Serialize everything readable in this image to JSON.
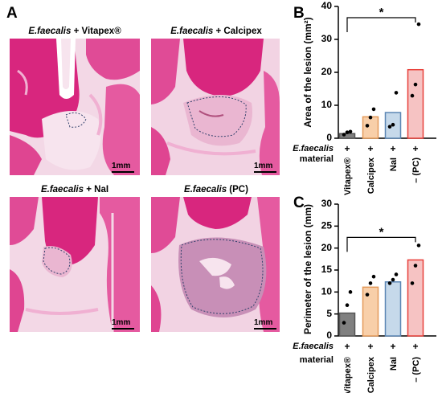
{
  "panel_a": {
    "letter": "A",
    "images": [
      {
        "title_italic": "E.faecalis",
        "title_rest": " + Vitapex®",
        "scale": "1mm",
        "variant": "vitapex"
      },
      {
        "title_italic": "E.faecalis",
        "title_rest": " + Calcipex",
        "scale": "1mm",
        "variant": "calcipex"
      },
      {
        "title_italic": "E.faecalis",
        "title_rest": " + NaI",
        "scale": "1mm",
        "variant": "nai"
      },
      {
        "title_italic": "E.faecalis",
        "title_rest": " (PC)",
        "scale": "1mm",
        "variant": "pc"
      }
    ]
  },
  "colors": {
    "gray": "#808080",
    "orange_fill": "#f8cfa9",
    "orange_edge": "#e49a5a",
    "blue_fill": "#c6d9ea",
    "blue_edge": "#5b86b4",
    "red_fill": "#f6c3c3",
    "red_edge": "#e8403a",
    "tissue_magenta": "#d8267e",
    "tissue_pink": "#f0b0d2",
    "tissue_pale": "#f7e4ee"
  },
  "chart_data": [
    {
      "type": "bar",
      "letter": "B",
      "ylabel": "Area of the lesion (mm²)",
      "ylim": [
        0,
        40
      ],
      "yticks": [
        "0",
        "10",
        "20",
        "30",
        "40"
      ],
      "row1_label": "E.faecalis",
      "row2_label": "material",
      "row1_marks": [
        "+",
        "+",
        "+",
        "+"
      ],
      "categories": [
        "Vitapex®",
        "Calcipex",
        "NaI",
        "– (PC)"
      ],
      "values": [
        1.4,
        6.5,
        7.8,
        20.8
      ],
      "points": [
        [
          1.1,
          1.8,
          2.0
        ],
        [
          3.8,
          6.3,
          8.8
        ],
        [
          3.5,
          4.1,
          13.8
        ],
        [
          12.9,
          16.3,
          34.6
        ]
      ],
      "significance": "*",
      "sig_pair": [
        0,
        3
      ]
    },
    {
      "type": "bar",
      "letter": "C",
      "ylabel": "Perimeter of the lesion (mm)",
      "ylim": [
        0,
        30
      ],
      "yticks": [
        "0",
        "5",
        "10",
        "15",
        "20",
        "25",
        "30"
      ],
      "row1_label": "E.faecalis",
      "row2_label": "material",
      "row1_marks": [
        "+",
        "+",
        "+",
        "+"
      ],
      "categories": [
        "Vitapex®",
        "Calcipex",
        "NaI",
        "– (PC)"
      ],
      "values": [
        5.2,
        11.1,
        12.3,
        17.3
      ],
      "points": [
        [
          3.0,
          7.0,
          10.0
        ],
        [
          9.4,
          12.0,
          13.5
        ],
        [
          12.0,
          12.8,
          14.0
        ],
        [
          12.0,
          16.0,
          20.6
        ]
      ],
      "significance": "*",
      "sig_pair": [
        0,
        3
      ]
    }
  ]
}
